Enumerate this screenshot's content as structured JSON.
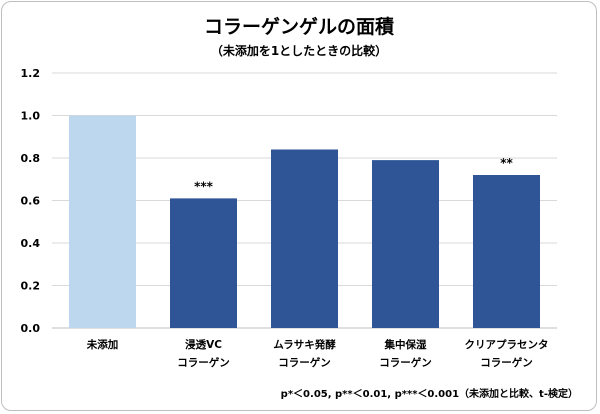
{
  "title": "コラーゲンゲルの面積",
  "subtitle": "（未添加を1としたときの比較）",
  "note": "p*＜0.05, p**＜0.01, p***＜0.001（未添加と比較、t-検定）",
  "colors": {
    "control": "#bdd7ee",
    "treatment": "#2f5597",
    "grid": "#d9d9d9",
    "axis": "#bfbfbf"
  },
  "chart_data": {
    "type": "bar",
    "categories": [
      [
        "未添加"
      ],
      [
        "浸透VC",
        "コラーゲン"
      ],
      [
        "ムラサキ発酵",
        "コラーゲン"
      ],
      [
        "集中保湿",
        "コラーゲン"
      ],
      [
        "クリアプラセンタ",
        "コラーゲン"
      ]
    ],
    "values": [
      1.0,
      0.61,
      0.84,
      0.79,
      0.72
    ],
    "significance": [
      "",
      "***",
      "",
      "",
      "**"
    ],
    "bar_color_keys": [
      "control",
      "treatment",
      "treatment",
      "treatment",
      "treatment"
    ],
    "ylim": [
      0,
      1.2
    ],
    "yticks": [
      "0.0",
      "0.2",
      "0.4",
      "0.6",
      "0.8",
      "1.0",
      "1.2"
    ],
    "grid": true,
    "xlabel": "",
    "ylabel": ""
  }
}
